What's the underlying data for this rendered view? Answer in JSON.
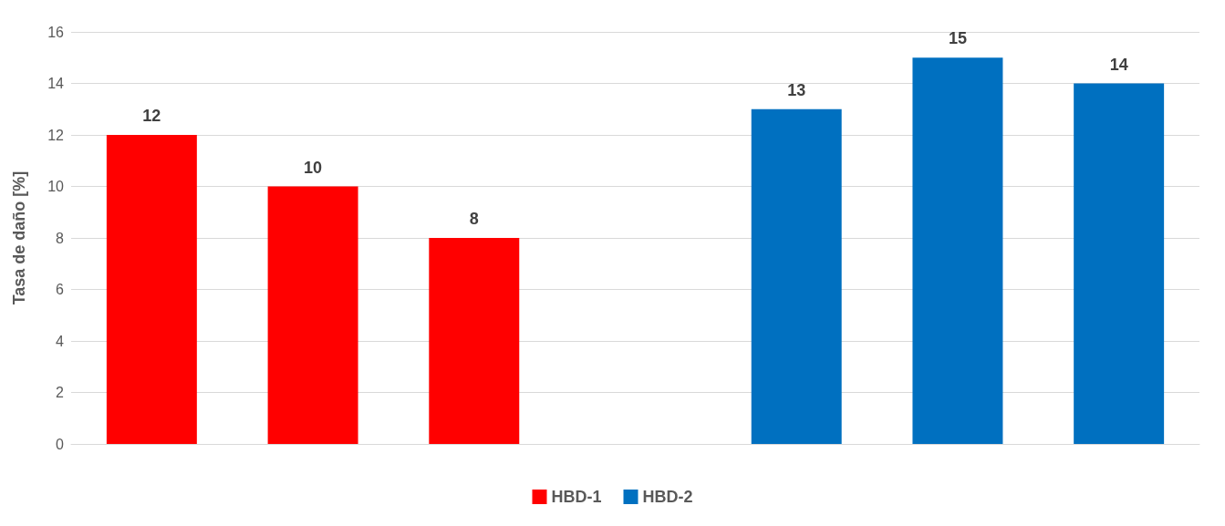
{
  "chart_data": {
    "type": "bar",
    "ylabel": "Tasa de daño [%]",
    "categories": [
      null,
      null,
      null,
      null,
      null,
      null,
      null
    ],
    "series": [
      {
        "name": "HBD-1",
        "color": "#ff0000",
        "values": [
          12,
          10,
          8,
          null,
          null,
          null,
          null
        ]
      },
      {
        "name": "HBD-2",
        "color": "#0070c0",
        "values": [
          null,
          null,
          null,
          null,
          13,
          15,
          14
        ]
      }
    ],
    "stacked": true,
    "ylim": [
      0,
      16
    ],
    "yticks": [
      0,
      2,
      4,
      6,
      8,
      10,
      12,
      14,
      16
    ],
    "grid": "y",
    "legend": "bottom",
    "data_labels": true
  }
}
